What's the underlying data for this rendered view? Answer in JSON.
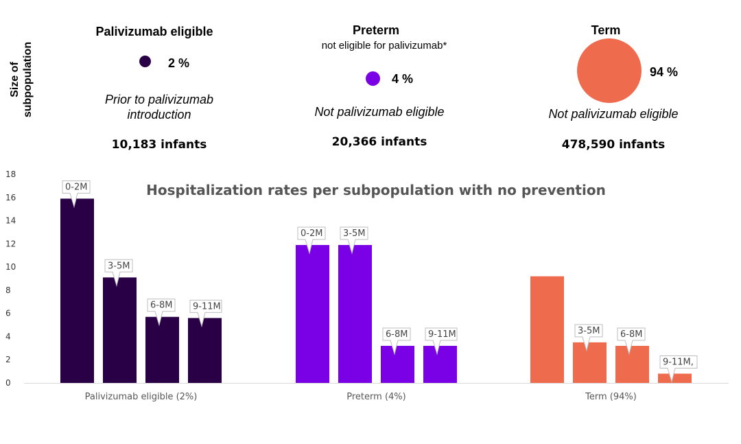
{
  "side_label": "Size of subpopulation",
  "groups": [
    {
      "title": "Palivizumab eligible",
      "subtitle": "",
      "share": "2 %",
      "note": "Prior to palivizumab introduction",
      "count": "10,183 infants",
      "color": "#290046"
    },
    {
      "title": "Preterm",
      "subtitle": "not eligible for palivizumab*",
      "share": "4 %",
      "note": "Not palivizumab eligible",
      "count": "20,366 infants",
      "color": "#7a00e6"
    },
    {
      "title": "Term",
      "subtitle": "",
      "share": "94 %",
      "note": "Not palivizumab eligible",
      "count": "478,590 infants",
      "color": "#ef6b4e"
    }
  ],
  "chart_data": {
    "type": "bar",
    "title": "Hospitalization rates per subpopulation with no prevention",
    "categories": [
      "Palivizumab eligible (2%)",
      "Preterm (4%)",
      "Term (94%)"
    ],
    "series": [
      {
        "values": [
          15.9,
          11.9,
          9.2
        ],
        "labels": [
          "0-2M",
          "0-2M",
          ""
        ]
      },
      {
        "values": [
          9.1,
          11.9,
          3.5
        ],
        "labels": [
          "3-5M",
          "3-5M",
          "3-5M"
        ]
      },
      {
        "values": [
          5.7,
          3.2,
          3.2
        ],
        "labels": [
          "6-8M",
          "6-8M",
          "6-8M"
        ]
      },
      {
        "values": [
          5.6,
          3.2,
          0.8
        ],
        "labels": [
          "9-11M",
          "9-11M",
          "9-11M,"
        ]
      }
    ],
    "colors": [
      "#290046",
      "#7a00e6",
      "#ef6b4e"
    ],
    "yticks": [
      "0",
      "2",
      "4",
      "6",
      "8",
      "10",
      "12",
      "14",
      "16",
      "18"
    ],
    "ylim": [
      0,
      18
    ],
    "grid": false,
    "legend": "none"
  }
}
